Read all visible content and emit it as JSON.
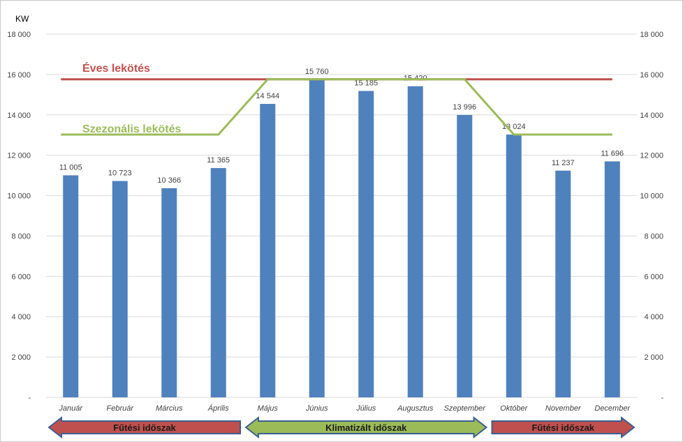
{
  "chart_data": {
    "type": "bar",
    "unit_label": "KW",
    "categories": [
      "Január",
      "Február",
      "Március",
      "Április",
      "Május",
      "Június",
      "Július",
      "Augusztus",
      "Szeptember",
      "Október",
      "November",
      "December"
    ],
    "series": [
      {
        "values": [
          11005,
          10723,
          10366,
          11365,
          14544,
          15760,
          15185,
          15420,
          13996,
          13024,
          11237,
          11696
        ],
        "color": "#4f81bd"
      }
    ],
    "data_labels": [
      "11 005",
      "10 723",
      "10 366",
      "11 365",
      "14 544",
      "15 760",
      "15 185",
      "15 420",
      "13 996",
      "13 024",
      "11 237",
      "11 696"
    ],
    "ylim": [
      0,
      18000
    ],
    "y_ticks": [
      {
        "value": 0,
        "label": "-"
      },
      {
        "value": 2000,
        "label": "2 000"
      },
      {
        "value": 4000,
        "label": "4 000"
      },
      {
        "value": 6000,
        "label": "6 000"
      },
      {
        "value": 8000,
        "label": "8 000"
      },
      {
        "value": 10000,
        "label": "10 000"
      },
      {
        "value": 12000,
        "label": "12 000"
      },
      {
        "value": 14000,
        "label": "14 000"
      },
      {
        "value": 16000,
        "label": "16 000"
      },
      {
        "value": 18000,
        "label": "18 000"
      }
    ],
    "secondary_axis": "right",
    "grid": true,
    "reference_lines": [
      {
        "name": "Éves lekötés",
        "color": "#c0504d",
        "start_index": 0,
        "values": [
          15760,
          15760,
          15760,
          15760,
          15760,
          15760,
          15760,
          15760,
          15760,
          15760,
          15760,
          15760
        ]
      },
      {
        "name": "Szezonális lekötés",
        "color": "#9bbb59",
        "start_index": 0,
        "values": [
          13024,
          13024,
          13024,
          13024,
          15760,
          15760,
          15760,
          15760,
          15760,
          13024,
          13024,
          13024
        ]
      }
    ],
    "period_arrows": [
      {
        "label": "Fűtési időszak",
        "from": 0,
        "to": 3,
        "direction": "left",
        "color": "#c0504d"
      },
      {
        "label": "Klimatizált időszak",
        "from": 4,
        "to": 8,
        "direction": "both",
        "color": "#9bbb59"
      },
      {
        "label": "Fűtési időszak",
        "from": 9,
        "to": 11,
        "direction": "right",
        "color": "#c0504d"
      }
    ]
  }
}
